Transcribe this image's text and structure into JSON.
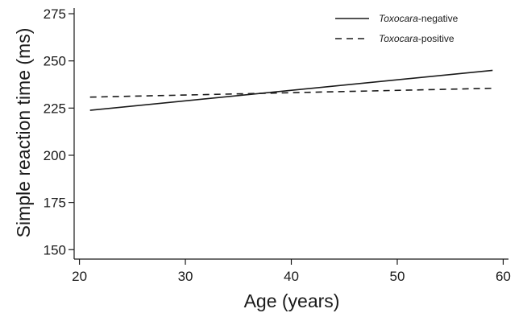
{
  "chart_data": {
    "type": "line",
    "xlabel": "Age (years)",
    "ylabel": "Simple reaction time (ms)",
    "xlim": [
      19.5,
      60.5
    ],
    "ylim": [
      145,
      278
    ],
    "xticks": [
      20,
      30,
      40,
      50,
      60
    ],
    "yticks": [
      150,
      175,
      200,
      225,
      250,
      275
    ],
    "xtick_labels": [
      "20",
      "30",
      "40",
      "50",
      "60"
    ],
    "ytick_labels": [
      "150",
      "175",
      "200",
      "225",
      "250",
      "275"
    ],
    "grid": false,
    "legend_position": "top-right",
    "series": [
      {
        "name": "Toxocara-negative",
        "name_italic": "Toxocara",
        "name_rest": "-negative",
        "line_style": "solid",
        "color": "#1a1a1a",
        "x": [
          21,
          59
        ],
        "y": [
          223.8,
          245.0
        ]
      },
      {
        "name": "Toxocara-positive",
        "name_italic": "Toxocara",
        "name_rest": "-positive",
        "line_style": "dashed",
        "color": "#1a1a1a",
        "x": [
          21,
          59
        ],
        "y": [
          230.8,
          235.5
        ]
      }
    ]
  }
}
